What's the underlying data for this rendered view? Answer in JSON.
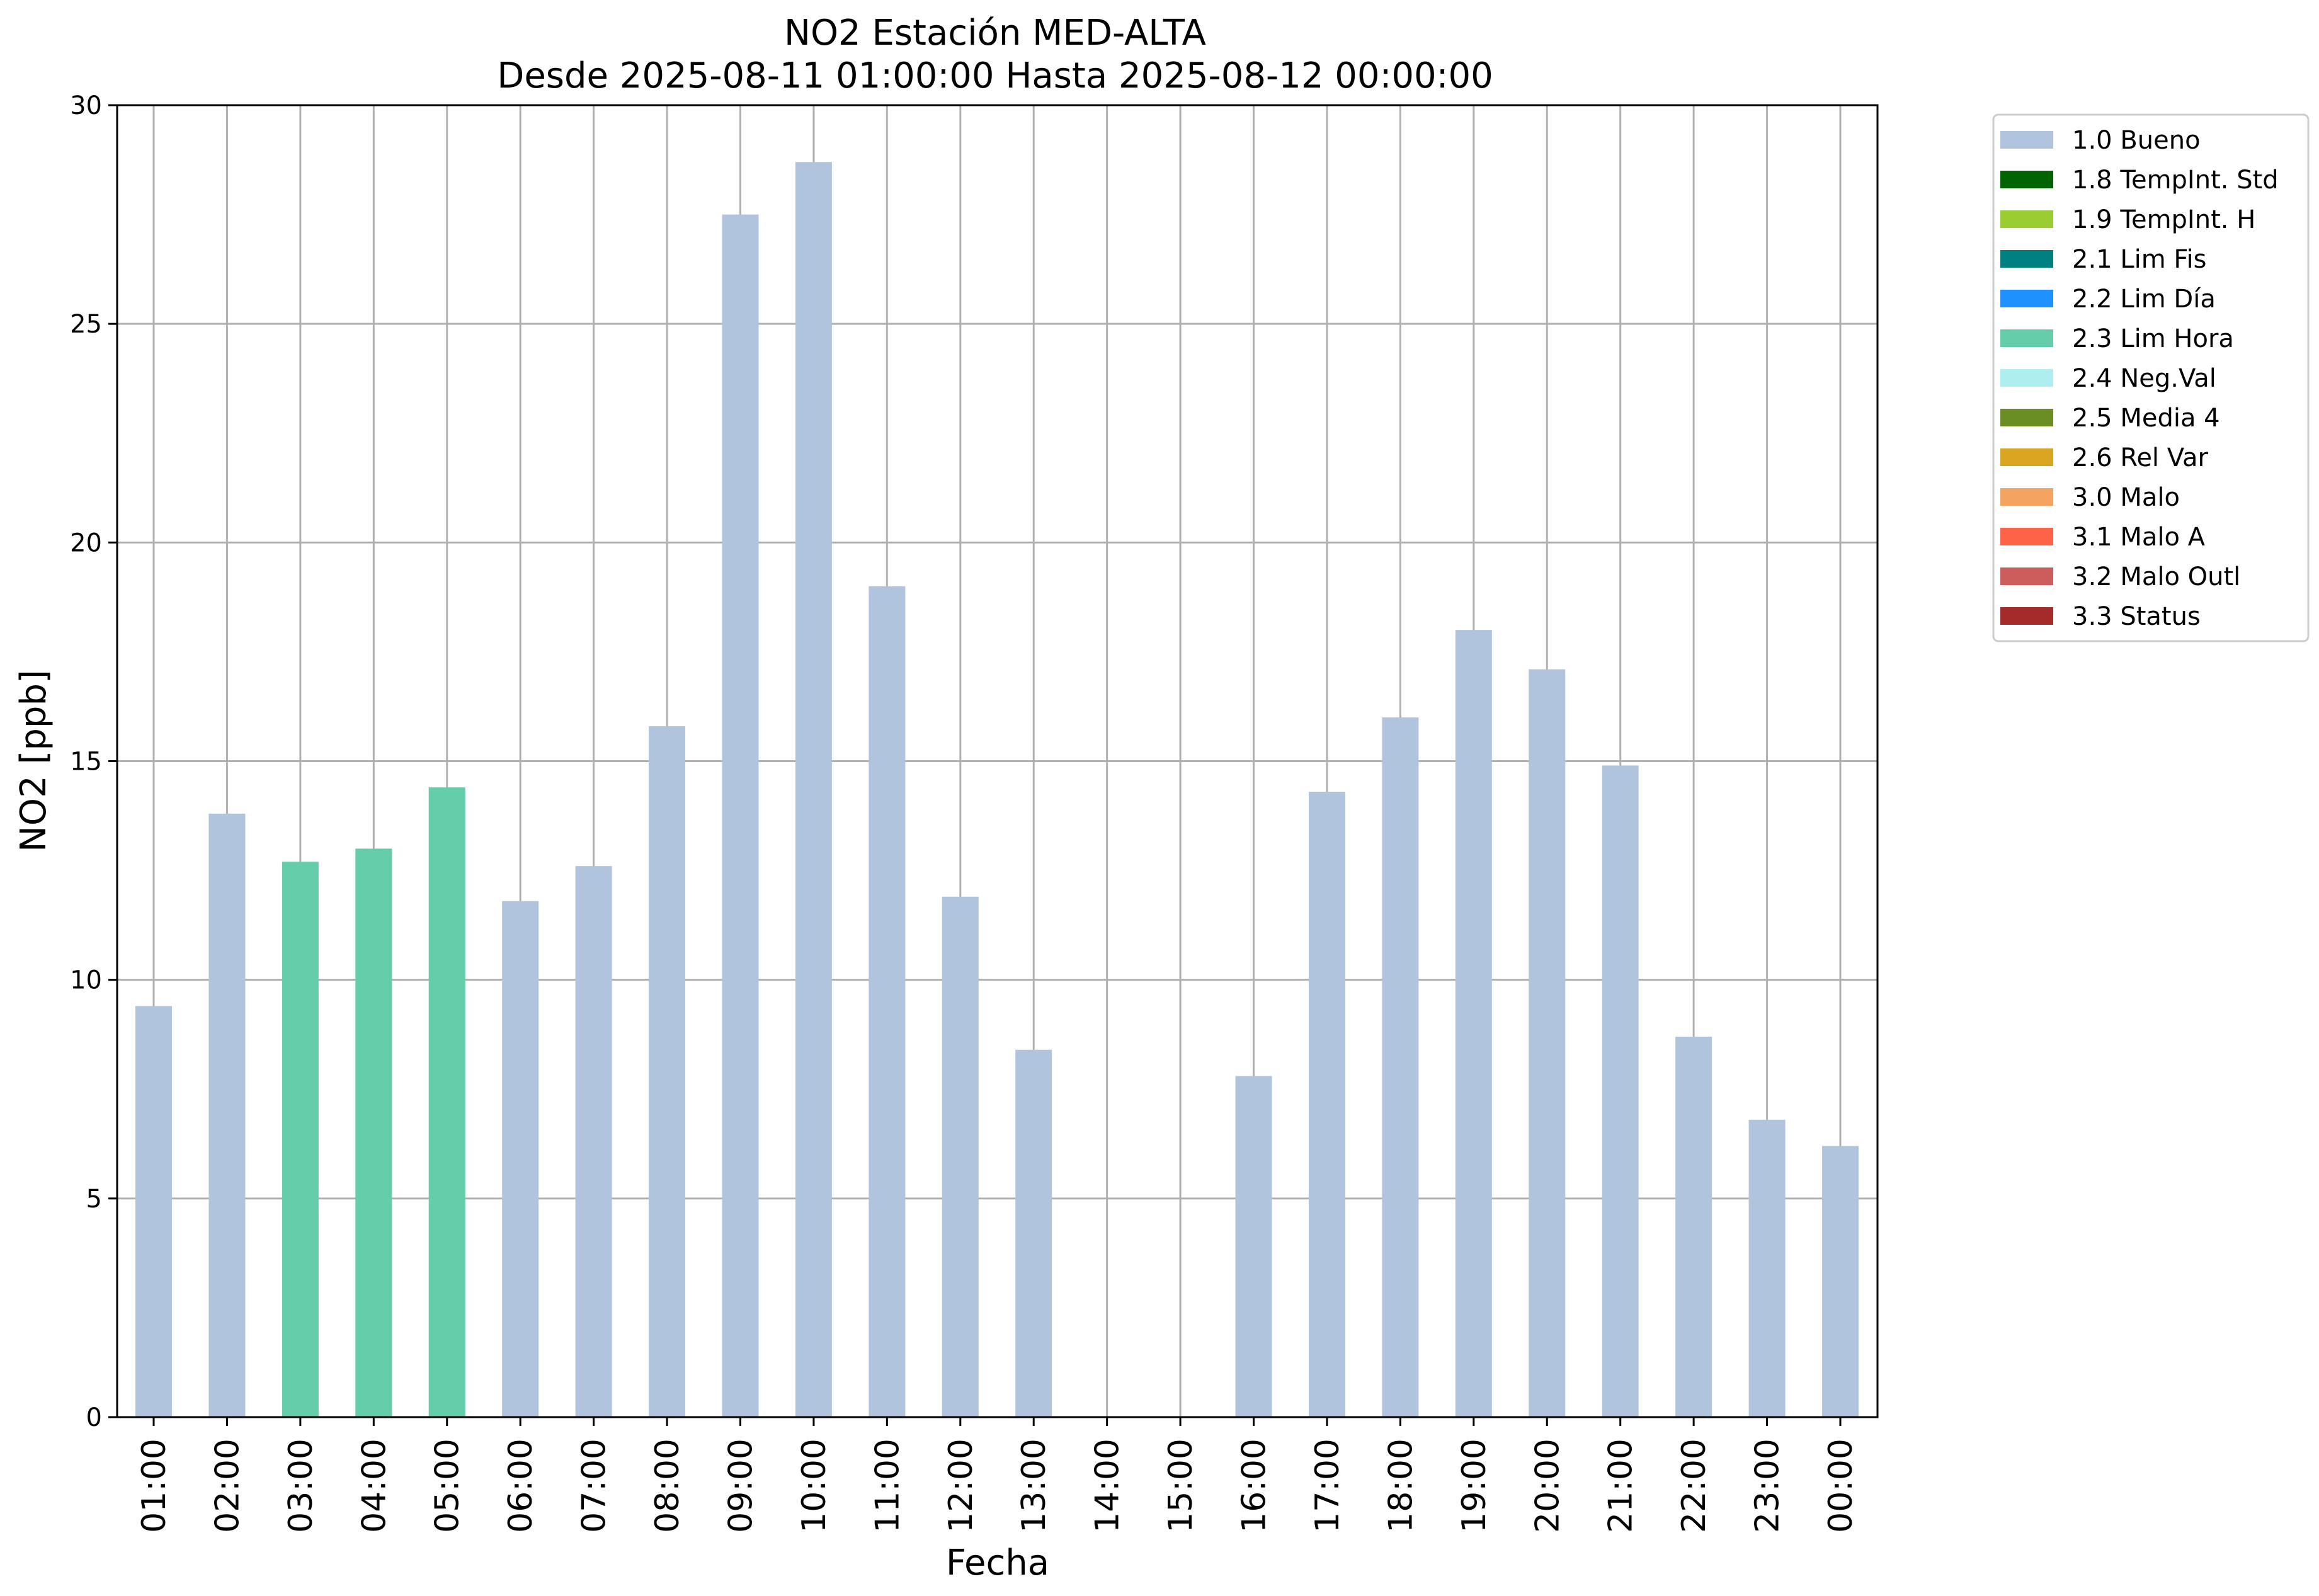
{
  "chart_data": {
    "type": "bar",
    "title": [
      "NO2 Estación MED-ALTA",
      "Desde 2025-08-11 01:00:00 Hasta 2025-08-12 00:00:00"
    ],
    "xlabel": "Fecha",
    "ylabel": "NO2 [ppb]",
    "ylim": [
      0,
      30
    ],
    "yticks": [
      "0",
      "5",
      "10",
      "15",
      "20",
      "25",
      "30"
    ],
    "grid": true,
    "legend_position": "outside-top-right",
    "categories": [
      "01:00",
      "02:00",
      "03:00",
      "04:00",
      "05:00",
      "06:00",
      "07:00",
      "08:00",
      "09:00",
      "10:00",
      "11:00",
      "12:00",
      "13:00",
      "14:00",
      "15:00",
      "16:00",
      "17:00",
      "18:00",
      "19:00",
      "20:00",
      "21:00",
      "22:00",
      "23:00",
      "00:00"
    ],
    "values": [
      9.4,
      13.8,
      12.7,
      13.0,
      14.4,
      11.8,
      12.6,
      15.8,
      27.5,
      28.7,
      19.0,
      11.9,
      8.4,
      null,
      null,
      7.8,
      14.3,
      16.0,
      18.0,
      17.1,
      14.9,
      8.7,
      6.8,
      6.2
    ],
    "flags": [
      "1.0 Bueno",
      "1.0 Bueno",
      "2.3 Lim Hora",
      "2.3 Lim Hora",
      "2.3 Lim Hora",
      "1.0 Bueno",
      "1.0 Bueno",
      "1.0 Bueno",
      "1.0 Bueno",
      "1.0 Bueno",
      "1.0 Bueno",
      "1.0 Bueno",
      "1.0 Bueno",
      null,
      null,
      "1.0 Bueno",
      "1.0 Bueno",
      "1.0 Bueno",
      "1.0 Bueno",
      "1.0 Bueno",
      "1.0 Bueno",
      "1.0 Bueno",
      "1.0 Bueno",
      "1.0 Bueno"
    ],
    "legend": [
      {
        "name": "1.0 Bueno",
        "color": "#b0c4de"
      },
      {
        "name": "1.8 TempInt. Std",
        "color": "#006400"
      },
      {
        "name": "1.9 TempInt. H",
        "color": "#9acd32"
      },
      {
        "name": "2.1 Lim Fis",
        "color": "#008080"
      },
      {
        "name": "2.2 Lim Día",
        "color": "#1e90ff"
      },
      {
        "name": "2.3 Lim Hora",
        "color": "#66cdaa"
      },
      {
        "name": "2.4 Neg.Val",
        "color": "#afeeee"
      },
      {
        "name": "2.5 Media 4",
        "color": "#6b8e23"
      },
      {
        "name": "2.6 Rel Var",
        "color": "#daa520"
      },
      {
        "name": "3.0 Malo",
        "color": "#f4a460"
      },
      {
        "name": "3.1 Malo A",
        "color": "#ff6347"
      },
      {
        "name": "3.2 Malo Outl",
        "color": "#cd5c5c"
      },
      {
        "name": "3.3 Status",
        "color": "#a52a2a"
      }
    ]
  }
}
